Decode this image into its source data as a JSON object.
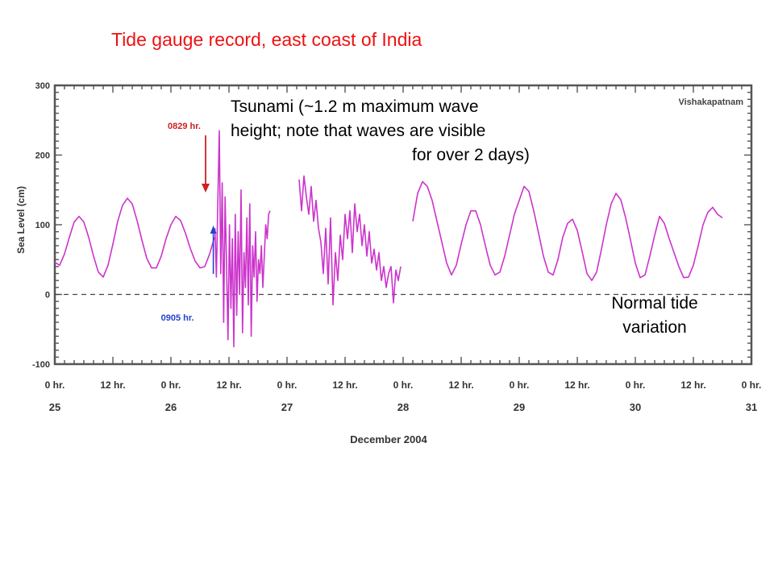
{
  "slide_title": "Tide gauge record, east coast of India",
  "callouts": {
    "tsunami_line1": "Tsunami (~1.2 m maximum wave",
    "tsunami_line2": "height; note that waves are visible",
    "tsunami_line3": "for over 2 days)",
    "normal_line1": "Normal tide",
    "normal_line2": "variation"
  },
  "colors": {
    "title": "#ee1111",
    "series": "#cc33cc",
    "arrival_arrow": "#cc2222",
    "first_peak_marker": "#2244cc"
  },
  "chart_data": {
    "type": "line",
    "station": "Vishakapatnam",
    "xlabel": "December 2004",
    "ylabel": "Sea Level (cm)",
    "ylim": [
      -100,
      300
    ],
    "xlim_hours": [
      0,
      144
    ],
    "yticks": [
      {
        "v": 300,
        "label": "300"
      },
      {
        "v": 200,
        "label": "200"
      },
      {
        "v": 100,
        "label": "100"
      },
      {
        "v": 0,
        "label": "0"
      },
      {
        "v": -100,
        "label": "-100"
      }
    ],
    "xticks": [
      {
        "h": 0,
        "label": "0 hr.",
        "day": "25"
      },
      {
        "h": 12,
        "label": "12 hr.",
        "day": ""
      },
      {
        "h": 24,
        "label": "0 hr.",
        "day": "26"
      },
      {
        "h": 36,
        "label": "12 hr.",
        "day": ""
      },
      {
        "h": 48,
        "label": "0 hr.",
        "day": "27"
      },
      {
        "h": 60,
        "label": "12 hr.",
        "day": ""
      },
      {
        "h": 72,
        "label": "0 hr.",
        "day": "28"
      },
      {
        "h": 84,
        "label": "12 hr.",
        "day": ""
      },
      {
        "h": 96,
        "label": "0 hr.",
        "day": "29"
      },
      {
        "h": 108,
        "label": "12 hr.",
        "day": ""
      },
      {
        "h": 120,
        "label": "0 hr.",
        "day": "30"
      },
      {
        "h": 132,
        "label": "12 hr.",
        "day": ""
      },
      {
        "h": 144,
        "label": "0 hr.",
        "day": "31"
      }
    ],
    "reference_line": {
      "y": 0,
      "style": "dashed"
    },
    "annotations": [
      {
        "text": "0829 hr.",
        "h": 32.5,
        "kind": "arrival-arrow"
      },
      {
        "text": "0905 hr.",
        "h": 33.1,
        "kind": "first-peak-marker"
      }
    ],
    "segments": [
      {
        "name": "pre-tsunami",
        "x": [
          0,
          1,
          2,
          3,
          4,
          5,
          6,
          7,
          8,
          9,
          10,
          11,
          12,
          13,
          14,
          15,
          16,
          17,
          18,
          19,
          20,
          21,
          22,
          23,
          24,
          25,
          26,
          27,
          28,
          29,
          30,
          31,
          32,
          33
        ],
        "y": [
          46,
          42,
          58,
          82,
          104,
          112,
          104,
          82,
          55,
          32,
          25,
          42,
          72,
          105,
          128,
          138,
          130,
          106,
          78,
          52,
          38,
          38,
          55,
          80,
          100,
          112,
          106,
          88,
          66,
          48,
          38,
          40,
          58,
          82
        ]
      },
      {
        "name": "tsunami",
        "x": [
          33.1,
          33.4,
          33.7,
          34.0,
          34.3,
          34.6,
          34.9,
          35.2,
          35.5,
          35.8,
          36.1,
          36.4,
          36.7,
          37.0,
          37.3,
          37.6,
          37.9,
          38.2,
          38.5,
          38.8,
          39.1,
          39.4,
          39.7,
          40.0,
          40.3,
          40.6,
          40.9,
          41.2,
          41.5,
          41.8,
          42.1,
          42.4,
          42.7,
          43.0,
          43.3,
          43.6,
          43.9,
          44.2,
          44.5
        ],
        "y": [
          95,
          25,
          135,
          235,
          30,
          160,
          -40,
          140,
          40,
          -65,
          100,
          -20,
          80,
          -75,
          115,
          -30,
          90,
          0,
          150,
          -55,
          60,
          10,
          110,
          -15,
          130,
          -60,
          70,
          25,
          90,
          -10,
          50,
          30,
          70,
          10,
          55,
          100,
          80,
          115,
          120
        ]
      },
      {
        "name": "post-tsunami-1",
        "x": [
          50.5,
          51,
          51.5,
          52,
          52.5,
          53,
          53.5,
          54,
          54.5,
          55,
          55.5,
          56,
          56.5,
          57,
          57.5,
          58,
          58.5,
          59,
          59.5,
          60,
          60.5,
          61,
          61.5,
          62,
          62.5,
          63,
          63.5,
          64,
          64.5,
          65,
          65.5,
          66,
          66.5,
          67,
          67.5,
          68,
          68.5,
          69,
          69.5,
          70,
          70.5,
          71,
          71.5
        ],
        "y": [
          165,
          120,
          170,
          140,
          115,
          155,
          105,
          135,
          95,
          75,
          30,
          95,
          15,
          110,
          -15,
          60,
          20,
          85,
          50,
          115,
          80,
          120,
          60,
          130,
          90,
          115,
          70,
          100,
          55,
          90,
          45,
          65,
          35,
          60,
          20,
          40,
          10,
          30,
          40,
          -12,
          35,
          20,
          40
        ]
      },
      {
        "name": "post-tsunami-2",
        "x": [
          74,
          75,
          76,
          77,
          78,
          79,
          80,
          81,
          82,
          83,
          84,
          85,
          86,
          87,
          88,
          89,
          90,
          91,
          92,
          93,
          94,
          95,
          96,
          97,
          98,
          99,
          100,
          101,
          102,
          103,
          104,
          105,
          106,
          107,
          108,
          109,
          110,
          111,
          112,
          113,
          114,
          115,
          116,
          117,
          118,
          119,
          120,
          121,
          122,
          123,
          124,
          125,
          126,
          127,
          128,
          129,
          130,
          131,
          132,
          133,
          134,
          135,
          136,
          137,
          138
        ],
        "y": [
          105,
          145,
          162,
          155,
          135,
          105,
          75,
          45,
          28,
          42,
          72,
          100,
          120,
          120,
          100,
          70,
          42,
          28,
          32,
          55,
          85,
          115,
          135,
          155,
          148,
          120,
          88,
          55,
          32,
          28,
          50,
          82,
          102,
          108,
          92,
          62,
          30,
          20,
          32,
          65,
          100,
          130,
          145,
          136,
          110,
          78,
          45,
          24,
          28,
          55,
          85,
          112,
          102,
          80,
          60,
          40,
          24,
          25,
          42,
          70,
          100,
          118,
          125,
          115,
          110
        ]
      }
    ]
  }
}
